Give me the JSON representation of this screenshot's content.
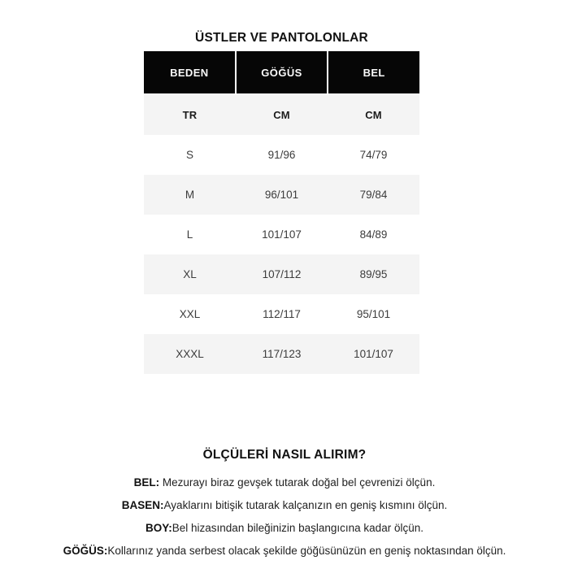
{
  "title": "ÜSTLER VE PANTOLONLAR",
  "size_table": {
    "columns": [
      "BEDEN",
      "GÖĞÜS",
      "BEL"
    ],
    "unit_row": [
      "TR",
      "CM",
      "CM"
    ],
    "rows": [
      [
        "S",
        "91/96",
        "74/79"
      ],
      [
        "M",
        "96/101",
        "79/84"
      ],
      [
        "L",
        "101/107",
        "84/89"
      ],
      [
        "XL",
        "107/112",
        "89/95"
      ],
      [
        "XXL",
        "112/117",
        "95/101"
      ],
      [
        "XXXL",
        "117/123",
        "101/107"
      ]
    ]
  },
  "measure_guide": {
    "heading": "ÖLÇÜLERİ NASIL ALIRIM?",
    "items": [
      {
        "label": "BEL:",
        "text": " Mezurayı biraz gevşek tutarak doğal bel çevrenizi ölçün."
      },
      {
        "label": "BASEN:",
        "text": "Ayaklarını bitişik tutarak kalçanızın en geniş kısmını ölçün."
      },
      {
        "label": "BOY:",
        "text": "Bel hizasından bileğinizin başlangıcına kadar ölçün."
      },
      {
        "label": "GÖĞÜS:",
        "text": "Kollarınız yanda serbest olacak şekilde göğüsünüzün en geniş noktasından ölçün."
      }
    ]
  },
  "colors": {
    "header_bg": "#060606",
    "header_text": "#fafafa",
    "row_alt_bg": "#f4f4f4",
    "body_text": "#3c3c3c",
    "page_bg": "#ffffff"
  }
}
